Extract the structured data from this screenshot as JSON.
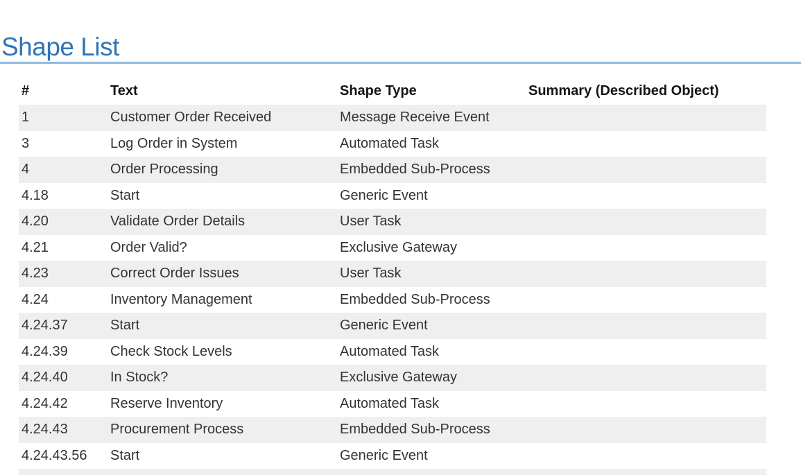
{
  "page": {
    "title": "Shape List"
  },
  "colors": {
    "title": "#2E75B6",
    "title_rule": "#8FB8DF",
    "row_shade": "#EFEFEF",
    "body_text": "#333333",
    "header_text": "#141414",
    "background": "#FFFFFF"
  },
  "table": {
    "columns": [
      {
        "key": "num",
        "label": "#"
      },
      {
        "key": "text",
        "label": "Text"
      },
      {
        "key": "shape_type",
        "label": "Shape Type"
      },
      {
        "key": "summary",
        "label": "Summary (Described Object)"
      }
    ],
    "rows": [
      {
        "num": "1",
        "text": "Customer Order Received",
        "shape_type": "Message Receive Event",
        "summary": ""
      },
      {
        "num": "3",
        "text": "Log Order in System",
        "shape_type": "Automated Task",
        "summary": ""
      },
      {
        "num": "4",
        "text": "Order Processing",
        "shape_type": "Embedded Sub-Process",
        "summary": ""
      },
      {
        "num": "4.18",
        "text": "Start",
        "shape_type": "Generic Event",
        "summary": ""
      },
      {
        "num": "4.20",
        "text": "Validate Order Details",
        "shape_type": "User Task",
        "summary": ""
      },
      {
        "num": "4.21",
        "text": "Order Valid?",
        "shape_type": "Exclusive Gateway",
        "summary": ""
      },
      {
        "num": "4.23",
        "text": "Correct Order Issues",
        "shape_type": "User Task",
        "summary": ""
      },
      {
        "num": "4.24",
        "text": "Inventory Management",
        "shape_type": "Embedded Sub-Process",
        "summary": ""
      },
      {
        "num": "4.24.37",
        "text": "Start",
        "shape_type": "Generic Event",
        "summary": ""
      },
      {
        "num": "4.24.39",
        "text": "Check Stock Levels",
        "shape_type": "Automated Task",
        "summary": ""
      },
      {
        "num": "4.24.40",
        "text": "In Stock?",
        "shape_type": "Exclusive Gateway",
        "summary": ""
      },
      {
        "num": "4.24.42",
        "text": "Reserve Inventory",
        "shape_type": "Automated Task",
        "summary": ""
      },
      {
        "num": "4.24.43",
        "text": "Procurement Process",
        "shape_type": "Embedded Sub-Process",
        "summary": ""
      },
      {
        "num": "4.24.43.56",
        "text": "Start",
        "shape_type": "Generic Event",
        "summary": ""
      }
    ],
    "partial_row_visible": true
  }
}
